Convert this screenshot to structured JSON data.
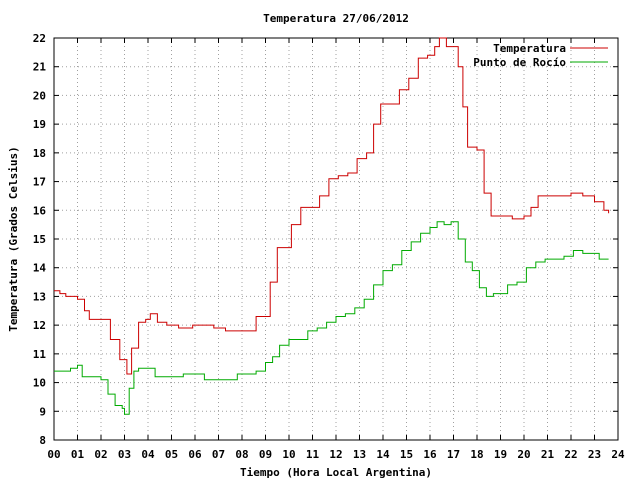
{
  "chart_data": {
    "type": "line",
    "title": "Temperatura 27/06/2012",
    "xlabel": "Tiempo (Hora Local Argentina)",
    "ylabel": "Temperatura (Grados Celsius)",
    "xlim": [
      0,
      24
    ],
    "ylim": [
      8,
      22
    ],
    "x_ticks": [
      "00",
      "01",
      "02",
      "03",
      "04",
      "05",
      "06",
      "07",
      "08",
      "09",
      "10",
      "11",
      "12",
      "13",
      "14",
      "15",
      "16",
      "17",
      "18",
      "19",
      "20",
      "21",
      "22",
      "23",
      "24"
    ],
    "y_ticks": [
      8,
      9,
      10,
      11,
      12,
      13,
      14,
      15,
      16,
      17,
      18,
      19,
      20,
      21,
      22
    ],
    "grid": true,
    "legend_position": "top-right",
    "series": [
      {
        "name": "Temperatura",
        "color": "#cc0000",
        "x": [
          0.0,
          0.25,
          0.5,
          1.0,
          1.3,
          1.5,
          2.0,
          2.4,
          2.8,
          3.0,
          3.1,
          3.3,
          3.6,
          3.9,
          4.1,
          4.4,
          4.8,
          5.3,
          5.9,
          6.4,
          6.8,
          7.3,
          7.8,
          8.2,
          8.6,
          8.9,
          9.2,
          9.5,
          9.8,
          10.1,
          10.5,
          10.9,
          11.3,
          11.7,
          12.1,
          12.5,
          12.9,
          13.3,
          13.6,
          13.9,
          14.3,
          14.7,
          15.1,
          15.5,
          15.9,
          16.2,
          16.4,
          16.7,
          17.0,
          17.2,
          17.4,
          17.6,
          18.0,
          18.3,
          18.6,
          19.0,
          19.5,
          20.0,
          20.3,
          20.6,
          21.0,
          21.5,
          22.0,
          22.5,
          23.0,
          23.4,
          23.6
        ],
        "values": [
          13.2,
          13.1,
          13.0,
          12.9,
          12.5,
          12.2,
          12.2,
          11.5,
          10.8,
          10.8,
          10.3,
          11.2,
          12.1,
          12.2,
          12.4,
          12.1,
          12.0,
          11.9,
          12.0,
          12.0,
          11.9,
          11.8,
          11.8,
          11.8,
          12.3,
          12.3,
          13.5,
          14.7,
          14.7,
          15.5,
          16.1,
          16.1,
          16.5,
          17.1,
          17.2,
          17.3,
          17.8,
          18.0,
          19.0,
          19.7,
          19.7,
          20.2,
          20.6,
          21.3,
          21.4,
          21.7,
          22.0,
          21.7,
          21.7,
          21.0,
          19.6,
          18.2,
          18.1,
          16.6,
          15.8,
          15.8,
          15.7,
          15.8,
          16.1,
          16.5,
          16.5,
          16.5,
          16.6,
          16.5,
          16.3,
          16.0,
          15.9
        ]
      },
      {
        "name": "Punto de Rocío",
        "color": "#00aa00",
        "x": [
          0.0,
          0.3,
          0.7,
          1.0,
          1.2,
          1.5,
          2.0,
          2.3,
          2.6,
          2.9,
          3.0,
          3.2,
          3.4,
          3.6,
          4.0,
          4.3,
          4.6,
          5.0,
          5.5,
          6.0,
          6.4,
          6.8,
          7.3,
          7.8,
          8.2,
          8.6,
          9.0,
          9.3,
          9.6,
          10.0,
          10.4,
          10.8,
          11.2,
          11.6,
          12.0,
          12.4,
          12.8,
          13.2,
          13.6,
          14.0,
          14.4,
          14.8,
          15.2,
          15.6,
          16.0,
          16.3,
          16.6,
          16.9,
          17.2,
          17.5,
          17.8,
          18.1,
          18.4,
          18.7,
          19.0,
          19.3,
          19.7,
          20.1,
          20.5,
          20.9,
          21.3,
          21.7,
          22.1,
          22.5,
          22.9,
          23.2,
          23.6
        ],
        "values": [
          10.4,
          10.4,
          10.5,
          10.6,
          10.2,
          10.2,
          10.1,
          9.6,
          9.2,
          9.1,
          8.9,
          9.8,
          10.4,
          10.5,
          10.5,
          10.2,
          10.2,
          10.2,
          10.3,
          10.3,
          10.1,
          10.1,
          10.1,
          10.3,
          10.3,
          10.4,
          10.7,
          10.9,
          11.3,
          11.5,
          11.5,
          11.8,
          11.9,
          12.1,
          12.3,
          12.4,
          12.6,
          12.9,
          13.4,
          13.9,
          14.1,
          14.6,
          14.9,
          15.2,
          15.4,
          15.6,
          15.5,
          15.6,
          15.0,
          14.2,
          13.9,
          13.3,
          13.0,
          13.1,
          13.1,
          13.4,
          13.5,
          14.0,
          14.2,
          14.3,
          14.3,
          14.4,
          14.6,
          14.5,
          14.5,
          14.3,
          14.3
        ]
      }
    ]
  }
}
